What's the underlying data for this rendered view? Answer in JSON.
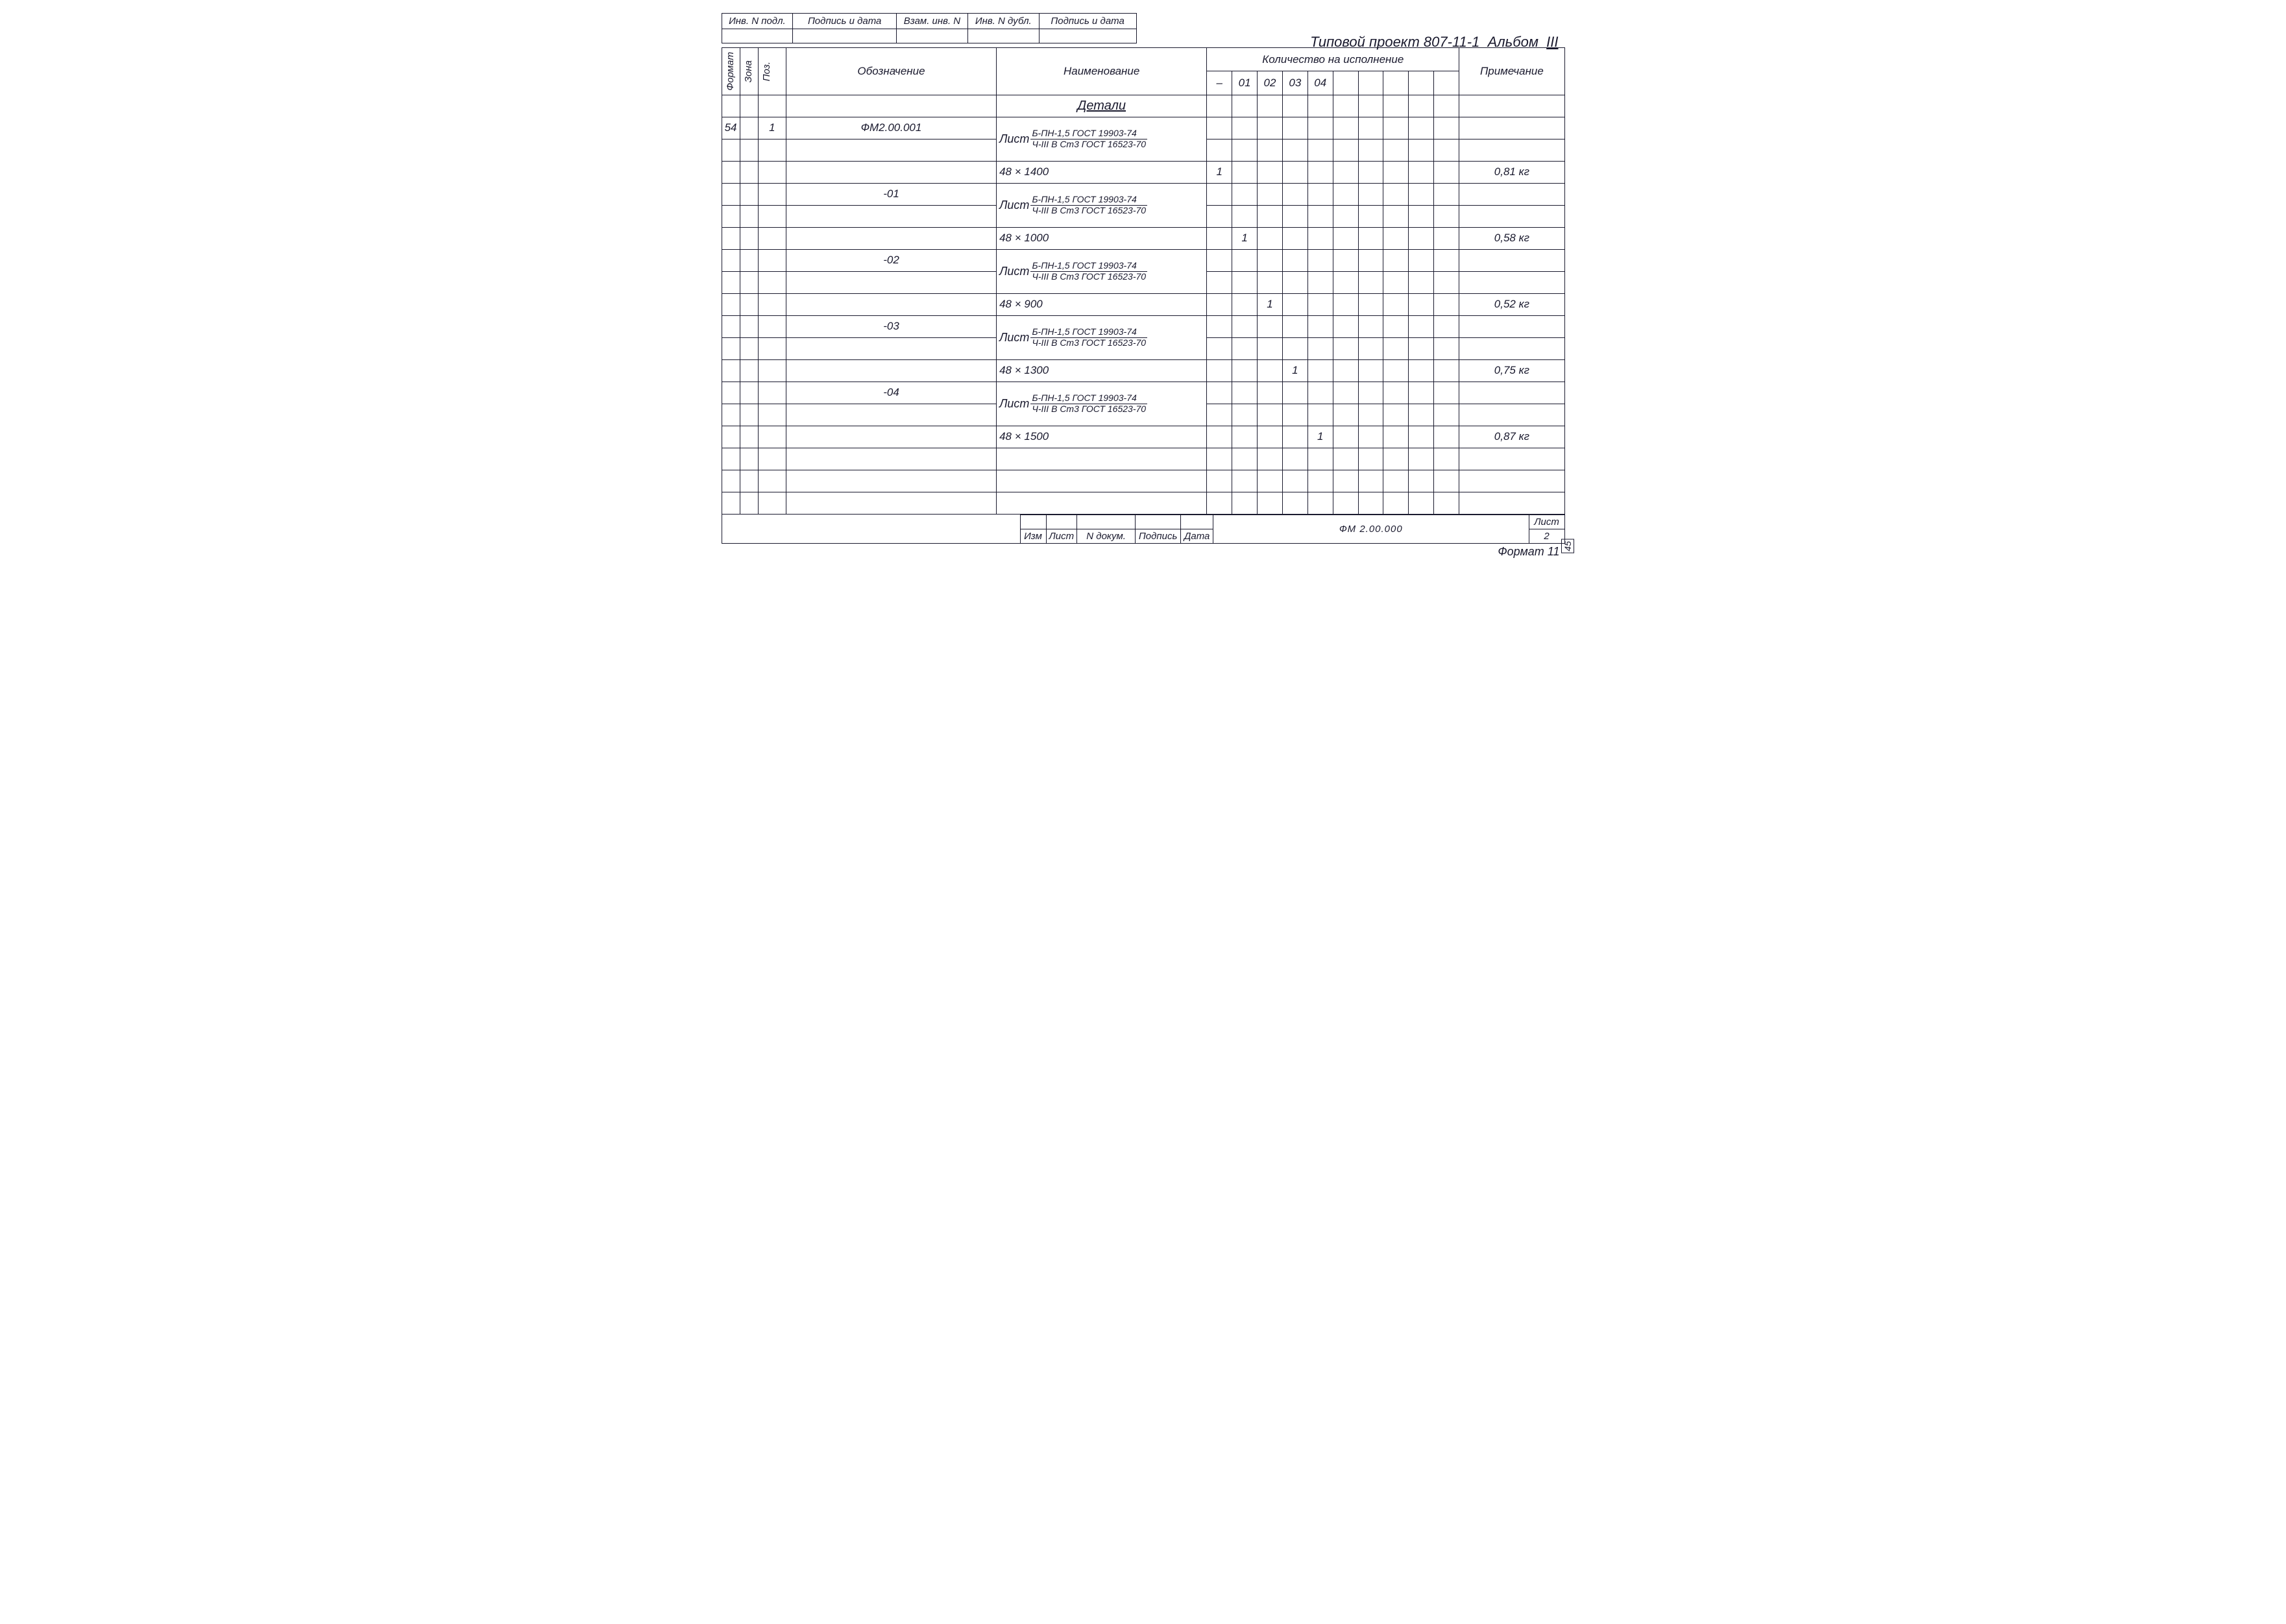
{
  "top_strip": {
    "headers": [
      "Инв. N подл.",
      "Подпись и дата",
      "Взам. инв. N",
      "Инв. N дубл.",
      "Подпись и дата"
    ]
  },
  "project": {
    "prefix": "Типовой проект",
    "number": "807-11-1",
    "album": "Альбом",
    "album_num": "III"
  },
  "spec": {
    "col_headers": {
      "format": "Формат",
      "zone": "Зона",
      "pos": "Поз.",
      "desig": "Обозначение",
      "name": "Наименование",
      "qty_group": "Количество на исполнение",
      "note": "Примечание"
    },
    "qty_cols": [
      "–",
      "01",
      "02",
      "03",
      "04",
      "",
      "",
      "",
      "",
      ""
    ],
    "section_title": "Детали",
    "material": {
      "prefix": "Лист",
      "top": "Б-ПН-1,5 ГОСТ 19903-74",
      "bot": "Ч-III В Ст3 ГОСТ 16523-70"
    },
    "rows": [
      {
        "format": "54",
        "pos": "1",
        "desig": "ФМ2.00.001",
        "kind": "mat"
      },
      {
        "kind": "size",
        "size": "48 × 1400",
        "qty_idx": 0,
        "qty": "1",
        "note": "0,81 кг"
      },
      {
        "desig": "-01",
        "kind": "mat"
      },
      {
        "kind": "size",
        "size": "48 × 1000",
        "qty_idx": 1,
        "qty": "1",
        "note": "0,58 кг"
      },
      {
        "desig": "-02",
        "kind": "mat"
      },
      {
        "kind": "size",
        "size": "48 × 900",
        "qty_idx": 2,
        "qty": "1",
        "note": "0,52 кг"
      },
      {
        "desig": "-03",
        "kind": "mat"
      },
      {
        "kind": "size",
        "size": "48 × 1300",
        "qty_idx": 3,
        "qty": "1",
        "note": "0,75 кг"
      },
      {
        "desig": "-04",
        "kind": "mat"
      },
      {
        "kind": "size",
        "size": "48 × 1500",
        "qty_idx": 4,
        "qty": "1",
        "note": "0,87 кг"
      },
      {
        "kind": "empty"
      },
      {
        "kind": "empty"
      },
      {
        "kind": "empty"
      }
    ]
  },
  "title_block": {
    "rev_headers": [
      "Изм",
      "Лист",
      "N докум.",
      "Подпись",
      "Дата"
    ],
    "doc_code": "ФМ 2.00.000",
    "sheet_label": "Лист",
    "sheet_num": "2"
  },
  "footer": {
    "format": "Формат 11",
    "page": "45"
  }
}
